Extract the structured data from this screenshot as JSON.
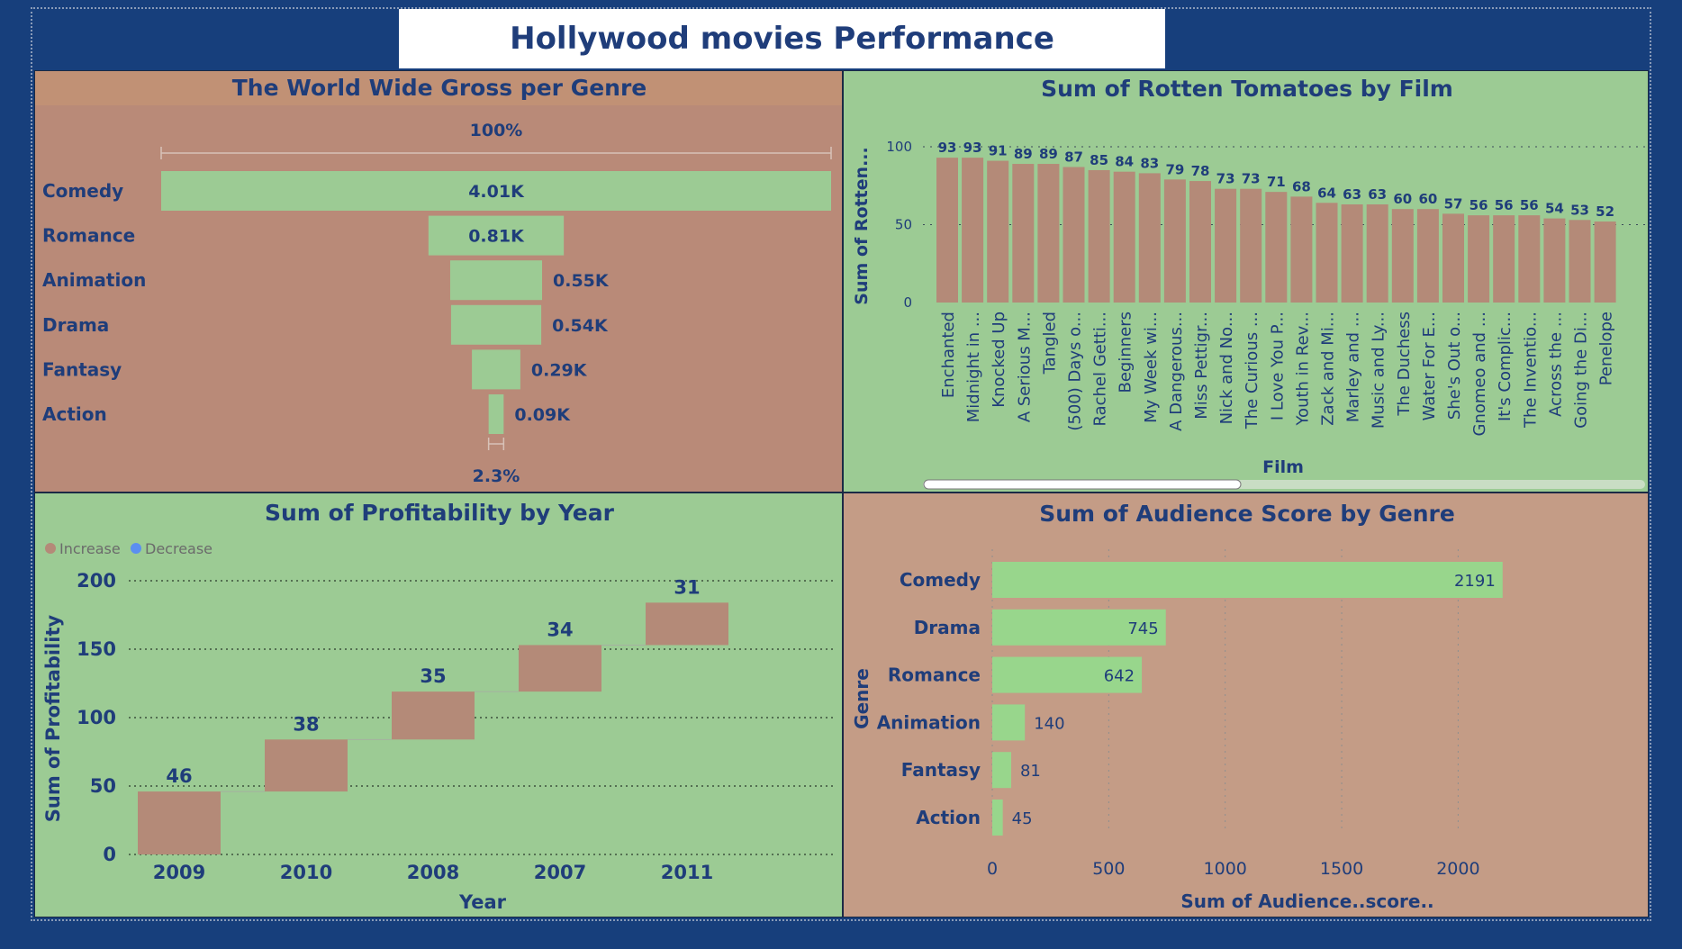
{
  "page": {
    "title": "Hollywood movies Performance"
  },
  "colors": {
    "background": "#173f7c",
    "green": "#9ccb94",
    "brown": "#b48a78",
    "text": "#1f3d7a"
  },
  "chart_data": [
    {
      "id": "funnel",
      "type": "funnel",
      "title": "The World Wide Gross per Genre",
      "top_percent_label": "100%",
      "bottom_percent_label": "2.3%",
      "categories": [
        "Comedy",
        "Romance",
        "Animation",
        "Drama",
        "Fantasy",
        "Action"
      ],
      "values": [
        4.01,
        0.81,
        0.55,
        0.54,
        0.29,
        0.09
      ],
      "value_labels": [
        "4.01K",
        "0.81K",
        "0.55K",
        "0.54K",
        "0.29K",
        "0.09K"
      ]
    },
    {
      "id": "rotten",
      "type": "bar",
      "title": "Sum of Rotten Tomatoes by Film",
      "xlabel": "Film",
      "ylabel": "Sum of Rotten...",
      "ylim": [
        0,
        100
      ],
      "yticks": [
        0,
        50,
        100
      ],
      "categories": [
        "Enchanted",
        "Midnight in ...",
        "Knocked Up",
        "A Serious M...",
        "Tangled",
        "(500) Days o...",
        "Rachel Getti...",
        "Beginners",
        "My Week wi...",
        "A Dangerous...",
        "Miss Pettigr...",
        "Nick and No...",
        "The Curious ...",
        "I Love You P...",
        "Youth in Rev...",
        "Zack and Mi...",
        "Marley and ...",
        "Music and Ly...",
        "The Duchess",
        "Water For E...",
        "She's Out o...",
        "Gnomeo and ...",
        "It's Complic...",
        "The Inventio...",
        "Across the ...",
        "Going the Di...",
        "Penelope"
      ],
      "values": [
        93,
        93,
        91,
        89,
        89,
        87,
        85,
        84,
        83,
        79,
        78,
        73,
        73,
        71,
        68,
        64,
        63,
        63,
        60,
        60,
        57,
        56,
        56,
        56,
        54,
        53,
        52
      ]
    },
    {
      "id": "profit",
      "type": "waterfall",
      "title": "Sum of Profitability by Year",
      "xlabel": "Year",
      "ylabel": "Sum of Profitability",
      "ylim": [
        0,
        200
      ],
      "yticks": [
        0,
        50,
        100,
        150,
        200
      ],
      "legend": [
        "Increase",
        "Decrease"
      ],
      "legend_colors": [
        "#b48a78",
        "#5b8ff0"
      ],
      "categories": [
        "2009",
        "2010",
        "2008",
        "2007",
        "2011"
      ],
      "values": [
        46,
        38,
        35,
        34,
        31
      ]
    },
    {
      "id": "audience",
      "type": "bar",
      "orientation": "horizontal",
      "title": "Sum of Audience Score by Genre",
      "xlabel": "Sum of Audience..score..",
      "ylabel": "Genre",
      "xlim": [
        0,
        2300
      ],
      "xticks": [
        0,
        500,
        1000,
        1500,
        2000
      ],
      "categories": [
        "Comedy",
        "Drama",
        "Romance",
        "Animation",
        "Fantasy",
        "Action"
      ],
      "values": [
        2191,
        745,
        642,
        140,
        81,
        45
      ]
    }
  ]
}
